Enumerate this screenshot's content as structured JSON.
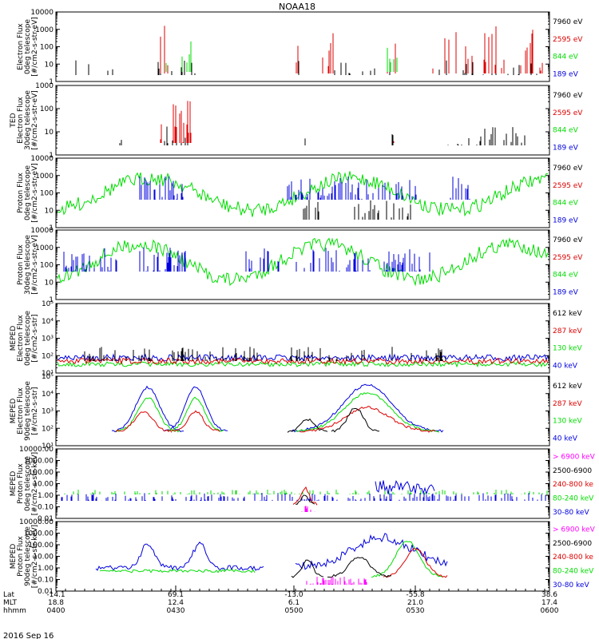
{
  "title": "NOAA18",
  "date_label": "2016 Sep 16",
  "colors": {
    "black": "#000000",
    "red": "#dd0000",
    "green": "#00dd00",
    "blue": "#0000dd",
    "magenta": "#ff00ff"
  },
  "x_axis": {
    "labels": [
      "Lat",
      "MLT",
      "hhmm"
    ],
    "ticks": [
      {
        "lat": "-14.1",
        "mlt": "18.8",
        "hhmm": "0400"
      },
      {
        "lat": "69.1",
        "mlt": "12.4",
        "hhmm": "0430"
      },
      {
        "lat": "-13.0",
        "mlt": "6.1",
        "hhmm": "0500"
      },
      {
        "lat": "-55.8",
        "mlt": "21.0",
        "hhmm": "0530"
      },
      {
        "lat": "38.6",
        "mlt": "17.4",
        "hhmm": "0600"
      }
    ]
  },
  "chart_data": [
    {
      "type": "line",
      "ylabel": [
        "Electron Flux",
        "0deg telescope",
        "[#/cm2-s-str-eV]"
      ],
      "y_log": true,
      "ylim": [
        1,
        10000
      ],
      "ytick_labels": [
        "1",
        "10",
        "100",
        "1000",
        "10000"
      ],
      "legend": [
        {
          "text": "7960 eV",
          "color": "#000000"
        },
        {
          "text": "2595 eV",
          "color": "#dd0000"
        },
        {
          "text": "844 eV",
          "color": "#00dd00"
        },
        {
          "text": "189 eV",
          "color": "#0000dd"
        }
      ]
    },
    {
      "type": "line",
      "ylabel": [
        "TED",
        "Electron Flux",
        "30deg telescope",
        "[#/cm2-s-str-eV]"
      ],
      "y_log": true,
      "ylim": [
        1,
        1000
      ],
      "ytick_labels": [
        "1",
        "10",
        "100",
        "1000"
      ],
      "legend": [
        {
          "text": "7960 eV",
          "color": "#000000"
        },
        {
          "text": "2595 eV",
          "color": "#dd0000"
        },
        {
          "text": "844 eV",
          "color": "#00dd00"
        },
        {
          "text": "189 eV",
          "color": "#0000dd"
        }
      ]
    },
    {
      "type": "line",
      "ylabel": [
        "Proton Flux",
        "0deg telescope",
        "[#/cm2-s-str-eV]"
      ],
      "y_log": true,
      "ylim": [
        1,
        10000
      ],
      "ytick_labels": [
        "1",
        "10",
        "100",
        "1000",
        "10000"
      ],
      "legend": [
        {
          "text": "7960 eV",
          "color": "#000000"
        },
        {
          "text": "2595 eV",
          "color": "#dd0000"
        },
        {
          "text": "844 eV",
          "color": "#00dd00"
        },
        {
          "text": "189 eV",
          "color": "#0000dd"
        }
      ]
    },
    {
      "type": "line",
      "ylabel": [
        "Proton Flux",
        "30deg telescope",
        "[#/cm2-s-str-eV]"
      ],
      "y_log": true,
      "ylim": [
        1,
        10000
      ],
      "ytick_labels": [
        "1",
        "10",
        "100",
        "1000",
        "10000"
      ],
      "legend": [
        {
          "text": "7960 eV",
          "color": "#000000"
        },
        {
          "text": "2595 eV",
          "color": "#dd0000"
        },
        {
          "text": "844 eV",
          "color": "#00dd00"
        },
        {
          "text": "189 eV",
          "color": "#0000dd"
        }
      ]
    },
    {
      "type": "line",
      "ylabel": [
        "MEPED",
        "Electron Flux",
        "0deg telescope",
        "[#/cm2-s-str]"
      ],
      "y_log": true,
      "ylim": [
        10,
        100000
      ],
      "ytick_labels": [
        "10¹",
        "10²",
        "10³",
        "10⁴",
        "10⁵"
      ],
      "legend": [
        {
          "text": "612 keV",
          "color": "#000000"
        },
        {
          "text": "287 keV",
          "color": "#dd0000"
        },
        {
          "text": "130 keV",
          "color": "#00dd00"
        },
        {
          "text": "40 keV",
          "color": "#0000dd"
        }
      ]
    },
    {
      "type": "line",
      "ylabel": [
        "MEPED",
        "Electron Flux",
        "90deg telescope",
        "[#/cm2-s-str]"
      ],
      "y_log": true,
      "ylim": [
        10,
        100000
      ],
      "ytick_labels": [
        "10¹",
        "10²",
        "10³",
        "10⁴",
        "10⁵"
      ],
      "legend": [
        {
          "text": "612 keV",
          "color": "#000000"
        },
        {
          "text": "287 keV",
          "color": "#dd0000"
        },
        {
          "text": "130 keV",
          "color": "#00dd00"
        },
        {
          "text": "40 keV",
          "color": "#0000dd"
        }
      ]
    },
    {
      "type": "line",
      "ylabel": [
        "MEPED",
        "Proton Flux",
        "0deg telescope",
        "[#/cm2-s-str-keV]"
      ],
      "y_log": true,
      "ylim": [
        0.01,
        10000
      ],
      "ytick_labels": [
        "0.01",
        "0.10",
        "1.00",
        "10.00",
        "100.00",
        "1000.00",
        "10000.00"
      ],
      "legend": [
        {
          "text": "> 6900 keV",
          "color": "#ff00ff"
        },
        {
          "text": "2500-6900",
          "color": "#000000"
        },
        {
          "text": "240-800 ke",
          "color": "#dd0000"
        },
        {
          "text": "80-240 keV",
          "color": "#00dd00"
        },
        {
          "text": "30-80 keV",
          "color": "#0000dd"
        }
      ]
    },
    {
      "type": "line",
      "ylabel": [
        "MEPED",
        "Proton Flux",
        "90deg telescope",
        "[#/cm2-s-str-keV]"
      ],
      "y_log": true,
      "ylim": [
        0.01,
        10000
      ],
      "ytick_labels": [
        "0.01",
        "0.10",
        "1.00",
        "10.00",
        "100.00",
        "1000.00",
        "10000.00"
      ],
      "legend": [
        {
          "text": "> 6900 keV",
          "color": "#ff00ff"
        },
        {
          "text": "2500-6900",
          "color": "#000000"
        },
        {
          "text": "240-800 ke",
          "color": "#dd0000"
        },
        {
          "text": "80-240 keV",
          "color": "#00dd00"
        },
        {
          "text": "30-80 keV",
          "color": "#0000dd"
        }
      ]
    }
  ]
}
